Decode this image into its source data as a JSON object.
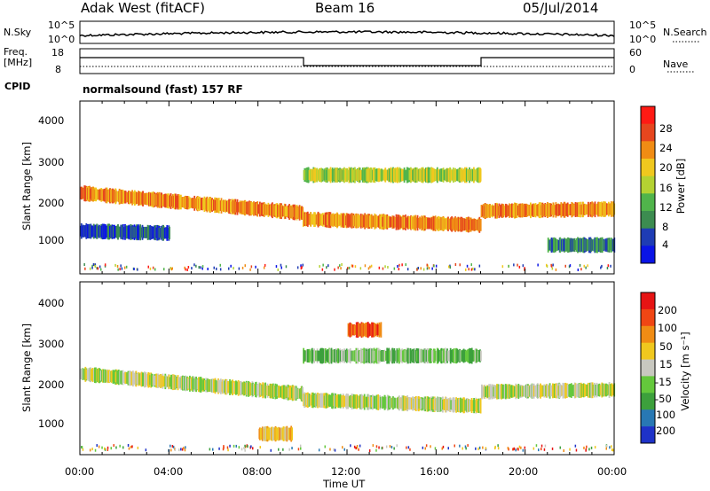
{
  "header": {
    "radar": "Adak West (fitACF)",
    "beam": "Beam 16",
    "date": "05/Jul/2014"
  },
  "nsky_panel": {
    "left_label": "N.Sky",
    "left_ticks": [
      "10^5",
      "10^0"
    ],
    "right_label": "N.Search",
    "right_ticks": [
      "10^5",
      "10^0"
    ]
  },
  "freq_panel": {
    "left_label_1": "Freq.",
    "left_label_2": "[MHz]",
    "left_ticks": [
      "18",
      "8"
    ],
    "right_label": "Nave",
    "right_ticks": [
      "60",
      "0"
    ],
    "cpid_label": "CPID",
    "cpid_value": "normalsound (fast) 157 RF"
  },
  "chart_data": [
    {
      "type": "heatmap",
      "name": "power",
      "ylabel": "Slant Range [km]",
      "yticks": [
        "4000",
        "3000",
        "2000",
        "1000"
      ],
      "ylim": [
        180,
        4500
      ],
      "xlim": [
        0,
        24
      ],
      "colorbar": {
        "label": "Power [dB]",
        "ticks": [
          "28",
          "24",
          "20",
          "16",
          "12",
          "8",
          "4"
        ],
        "colors": [
          "#0a14e6",
          "#1e3cb4",
          "#3c8c50",
          "#50b44b",
          "#b4d232",
          "#f0c81e",
          "#f08c14",
          "#e6461e",
          "#ff1a14"
        ]
      },
      "bands": [
        {
          "t0": 0.0,
          "t1": 10.0,
          "r": [
            2200,
            1700
          ],
          "level": 6
        },
        {
          "t0": 10.0,
          "t1": 18.0,
          "r": [
            1550,
            1400
          ],
          "level": 6
        },
        {
          "t0": 10.0,
          "t1": 18.0,
          "r": [
            2650,
            2650
          ],
          "level": 4
        },
        {
          "t0": 18.0,
          "t1": 24.0,
          "r": [
            1750,
            1800
          ],
          "level": 6
        },
        {
          "t0": 0.0,
          "t1": 4.0,
          "r": [
            1250,
            1200
          ],
          "level": 1
        },
        {
          "t0": 21.0,
          "t1": 24.0,
          "r": [
            900,
            900
          ],
          "level": 2
        }
      ]
    },
    {
      "type": "heatmap",
      "name": "velocity",
      "ylabel": "Slant Range [km]",
      "xlabel": "Time UT",
      "yticks": [
        "4000",
        "3000",
        "2000",
        "1000"
      ],
      "xticks": [
        "00:00",
        "04:00",
        "08:00",
        "12:00",
        "16:00",
        "20:00",
        "00:00"
      ],
      "ylim": [
        180,
        4500
      ],
      "xlim": [
        0,
        24
      ],
      "colorbar": {
        "label": "Velocity [m s⁻¹]",
        "ticks": [
          "200",
          "100",
          "50",
          "15",
          "-15",
          "-50",
          "-100",
          "-200"
        ],
        "colors": [
          "#1e32c8",
          "#2878b4",
          "#3ca03c",
          "#64c83c",
          "#c8c8c0",
          "#f0c81e",
          "#f08c14",
          "#f04614",
          "#e61414"
        ]
      },
      "bands": [
        {
          "t0": 0.0,
          "t1": 10.0,
          "r": [
            2200,
            1700
          ],
          "level": 4
        },
        {
          "t0": 10.0,
          "t1": 18.0,
          "r": [
            1550,
            1400
          ],
          "level": 4
        },
        {
          "t0": 10.0,
          "t1": 18.0,
          "r": [
            2650,
            2650
          ],
          "level": 3
        },
        {
          "t0": 18.0,
          "t1": 24.0,
          "r": [
            1750,
            1800
          ],
          "level": 4
        },
        {
          "t0": 12.0,
          "t1": 13.5,
          "r": [
            3300,
            3300
          ],
          "level": 7
        },
        {
          "t0": 8.0,
          "t1": 9.5,
          "r": [
            700,
            700
          ],
          "level": 5
        }
      ]
    }
  ]
}
